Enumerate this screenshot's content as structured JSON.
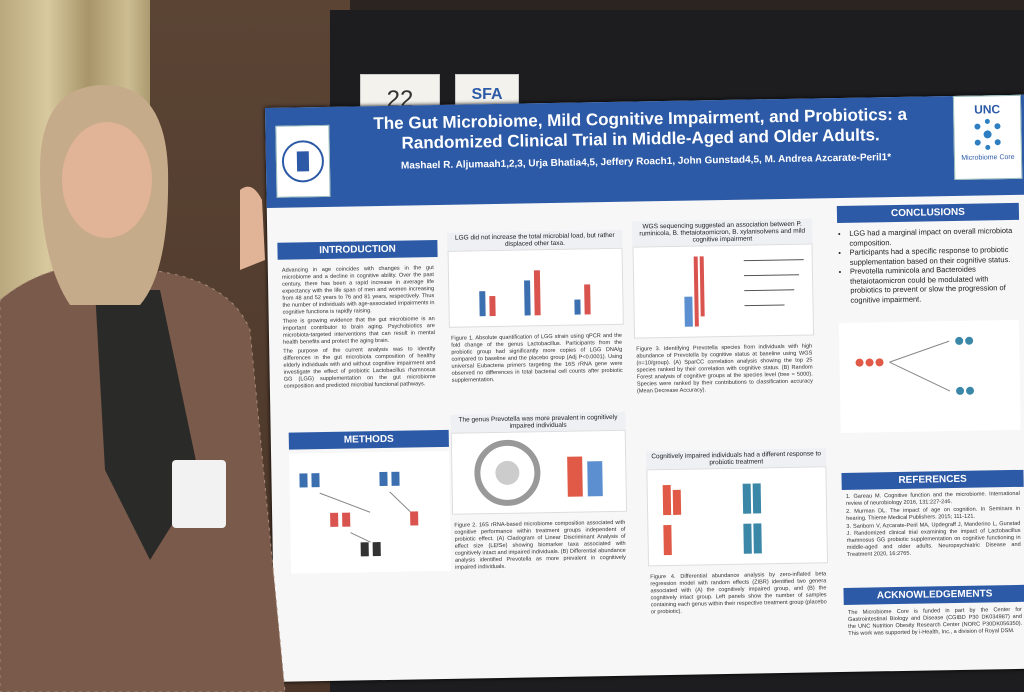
{
  "sign_number": "22",
  "sign_logo": "SFA",
  "poster": {
    "title": "The Gut Microbiome, Mild Cognitive Impairment, and Probiotics: a Randomized Clinical Trial in Middle-Aged and Older Adults.",
    "authors": "Mashael R. Aljumaah1,2,3, Urja Bhatia4,5, Jeffery Roach1, John Gunstad4,5, M. Andrea Azcarate-Peril1*",
    "logo_text": "UNC",
    "logo_caption": "Microbiome Core",
    "introduction": {
      "heading": "INTRODUCTION",
      "paragraphs": [
        "Advancing in age coincides with changes in the gut microbiome and a decline in cognitive ability. Over the past century, there has been a rapid increase in average life expectancy with the life span of men and women increasing from 48 and 52 years to 76 and 81 years, respectively. Thus the number of individuals with age-associated impairments in cognitive functions is rapidly raising.",
        "There is growing evidence that the gut microbiome is an important contributor to brain aging. Psychobiotics are microbiota-targeted interventions that can result in mental health benefits and protect the aging brain.",
        "The purpose of the current analysis was to identify differences in the gut microbiota composition of healthy elderly individuals with and without cognitive impairment and investigate the effect of probiotic Lactobacillus rhamnosus GG (LGG) supplementation on the gut microbiome composition and predicted microbial functional pathways."
      ]
    },
    "methods": {
      "heading": "METHODS"
    },
    "figures": [
      {
        "heading": "LGG did not increase the total microbial load, but rather displaced other taxa.",
        "caption": "Figure 1. Absolute quantification of LGG strain using qPCR and the fold change of the genus Lactobacillus. Participants from the probiotic group had significantly more copies of LGG DNA/g compared to baseline and the placebo group (Adj P<0.0001). Using universal Eubacteria primers targeting the 16S rRNA gene were observed no differences in total bacterial cell counts after probiotic supplementation."
      },
      {
        "heading": "The genus Prevotella was more prevalent in cognitively impaired individuals",
        "caption": "Figure 2. 16S rRNA-based microbiome composition associated with cognitive performance within treatment groups independent of probiotic effect. (A) Cladogram of Linear Discriminant Analysis of effect size (LEfSe) showing biomarker taxa associated with cognitively intact and impaired individuals. (B) Differential abundance analysis identified Prevotella as more prevalent in cognitively impaired individuals."
      },
      {
        "heading": "WGS sequencing suggested an association between P. ruminicola, B. thetaiotaomicron, B. xylanisolvens and mild cognitive impairment",
        "caption": "Figure 3. Identifying Prevotella species from individuals with high abundance of Prevotella by cognitive status at baseline using WGS (n=10/group). (A) SparCC correlation analysis showing the top 25 species ranked by their correlation with cognitive status. (B) Random Forest analysis of cognitive groups at the species level (tree = 5000). Species were ranked by their contributions to classification accuracy (Mean Decrease Accuracy)."
      },
      {
        "heading": "Cognitively impaired individuals had a different response to probiotic treatment",
        "caption": "Figure 4. Differential abundance analysis by zero-inflated beta regression model with random effects (ZIBR) identified two genera associated with (A) the cognitively impaired group, and (B) the cognitively intact group. Left panels show the number of samples containing each genus within their respective treatment group (placebo or probiotic)."
      }
    ],
    "conclusions": {
      "heading": "CONCLUSIONS",
      "items": [
        "LGG had a marginal impact on overall microbiota composition.",
        "Participants had a specific response to probiotic supplementation based on their cognitive status.",
        "Prevotella ruminicola and Bacteroides thetaiotaomicron could be modulated with probiotics to prevent or slow the progression of cognitive impairment."
      ]
    },
    "references": {
      "heading": "REFERENCES",
      "items": [
        "1. Gareau M. Cognitive function and the microbiome. International review of neurobiology 2016, 131:227-246.",
        "2. Murman DL. The impact of age on cognition. In Seminars in hearing. Thieme Medical Publishers. 2015; 111-121.",
        "3. Sanborn V, Azcarate-Peril MA, Updegraff J, Manderino L, Gunstad J. Randomized clinical trial examining the impact of Lactobacillus rhamnosus GG probiotic supplementation on cognitive functioning in middle-aged and older adults. Neuropsychiatric Disease and Treatment 2020, 16:2765."
      ]
    },
    "acknowledgements": {
      "heading": "ACKNOWLEDGEMENTS",
      "text": "The Microbiome Core is funded in part by the Center for Gastrointestinal Biology and Disease (CGIBD P30 DK034987) and the UNC Nutrition Obesity Research Center (NORC P30DK056350). This work was supported by i-Health, Inc., a division of Royal DSM."
    }
  }
}
